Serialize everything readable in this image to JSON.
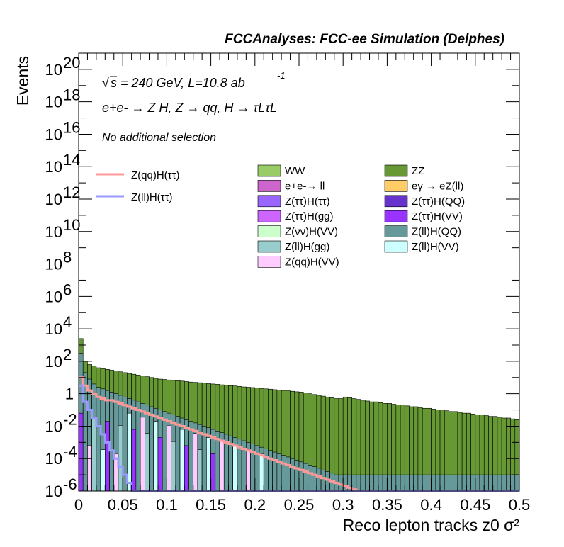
{
  "chart_data": {
    "type": "bar",
    "title": "FCCAnalyses: FCC-ee Simulation (Delphes)",
    "xlabel": "Reco lepton tracks z0 σ²",
    "ylabel": "Events",
    "x_range": [
      0,
      0.5
    ],
    "y_range": [
      1e-06,
      1e+21
    ],
    "y_scale": "log",
    "x_ticks": [
      "0",
      "0.05",
      "0.1",
      "0.15",
      "0.2",
      "0.25",
      "0.3",
      "0.35",
      "0.4",
      "0.45",
      "0.5"
    ],
    "y_tick_exponents": [
      "-6",
      "-4",
      "-2",
      "",
      "2",
      "4",
      "6",
      "8",
      "10",
      "12",
      "14",
      "16",
      "18",
      "20"
    ],
    "annotations": {
      "energy": "s = 240 GeV, L=10.8 ab",
      "energy_sup": "-1",
      "process": "e+e- → Z H, Z → qq, H → τLτL",
      "selection": "No additional selection"
    },
    "legend": {
      "lines": [
        {
          "label": "Z(qq)H(ττ)",
          "color": "#ff9999"
        },
        {
          "label": "Z(ll)H(ττ)",
          "color": "#9999ff"
        }
      ],
      "fills": [
        {
          "label": "WW",
          "color": "#99cc66"
        },
        {
          "label": "ZZ",
          "color": "#669933"
        },
        {
          "label": "e+e-→ ll",
          "color": "#cc66cc"
        },
        {
          "label": "eγ → eZ(ll)",
          "color": "#ffcc66"
        },
        {
          "label": "Z(ττ)H(ττ)",
          "color": "#9966ff"
        },
        {
          "label": "Z(ττ)H(QQ)",
          "color": "#6633cc"
        },
        {
          "label": "Z(ττ)H(gg)",
          "color": "#cc66ff"
        },
        {
          "label": "Z(ττ)H(VV)",
          "color": "#9933ff"
        },
        {
          "label": "Z(νν)H(VV)",
          "color": "#ccffcc"
        },
        {
          "label": "Z(ll)H(QQ)",
          "color": "#669999"
        },
        {
          "label": "Z(ll)H(gg)",
          "color": "#99cccc"
        },
        {
          "label": "Z(ll)H(VV)",
          "color": "#ccffff"
        },
        {
          "label": "Z(qq)H(VV)",
          "color": "#ffccff"
        }
      ]
    },
    "bin_width": 0.005,
    "stack_total_log10": [
      3.4,
      2.0,
      1.8,
      1.7,
      1.6,
      1.55,
      1.5,
      1.45,
      1.4,
      1.35,
      1.3,
      1.25,
      1.2,
      1.15,
      1.1,
      1.05,
      1.0,
      0.95,
      0.9,
      0.88,
      0.85,
      0.82,
      0.8,
      0.78,
      0.75,
      0.72,
      0.7,
      0.68,
      0.65,
      0.62,
      0.6,
      0.58,
      0.55,
      0.52,
      0.5,
      0.48,
      0.45,
      0.42,
      0.4,
      0.38,
      0.35,
      0.33,
      0.3,
      0.28,
      0.25,
      0.22,
      0.2,
      0.18,
      0.15,
      0.12,
      0.1,
      0.05,
      0.0,
      -0.05,
      -0.1,
      -0.15,
      -0.2,
      -0.25,
      -0.3,
      -0.3,
      -0.2,
      -0.25,
      -0.3,
      -0.35,
      -0.4,
      -0.45,
      -0.5,
      -0.5,
      -0.55,
      -0.6,
      -0.6,
      -0.65,
      -0.7,
      -0.7,
      -0.75,
      -0.8,
      -0.8,
      -0.85,
      -0.9,
      -0.9,
      -0.95,
      -1.0,
      -1.0,
      -1.05,
      -1.1,
      -1.1,
      -1.15,
      -1.2,
      -1.2,
      -1.25,
      -1.3,
      -1.3,
      -1.35,
      -1.4,
      -1.4,
      -1.45,
      -1.5,
      -1.5,
      -1.55,
      -1.6
    ],
    "zllhqq_log10": [
      2.5,
      1.3,
      0.9,
      0.6,
      0.4,
      0.3,
      0.2,
      0.1,
      0.0,
      -0.1,
      -0.2,
      -0.3,
      -0.4,
      -0.5,
      -0.6,
      -0.7,
      -0.8,
      -0.9,
      -1.0,
      -1.1,
      -1.2,
      -1.3,
      -1.4,
      -1.5,
      -1.6,
      -1.7,
      -1.8,
      -1.9,
      -2.0,
      -2.1,
      -2.2,
      -2.3,
      -2.4,
      -2.5,
      -2.6,
      -2.7,
      -2.8,
      -2.9,
      -3.0,
      -3.1,
      -3.2,
      -3.3,
      -3.4,
      -3.5,
      -3.6,
      -3.7,
      -3.8,
      -3.9,
      -4.0,
      -4.1,
      -4.2,
      -4.3,
      -4.4,
      -4.5,
      -4.6,
      -4.7,
      -4.8,
      -4.9,
      -5.0,
      -5.0,
      -5.0,
      -5.0,
      -5.0,
      -5.0,
      -5.0,
      -5.0,
      -5.0,
      -5.0,
      -5.0,
      -5.0,
      -5.0,
      -5.0,
      -5.0,
      -5.0,
      -5.0,
      -5.0,
      -5.0,
      -5.0,
      -5.0,
      -5.0,
      -5.0,
      -5.0,
      -5.0,
      -5.0,
      -5.0,
      -5.0,
      -5.0,
      -5.0,
      -5.0,
      -5.0,
      -5.0,
      -5.0,
      -5.0,
      -5.0,
      -5.0,
      -5.0,
      -5.0,
      -5.0,
      -5.0,
      -5.0
    ],
    "zqqhtautau_log10": [
      1.0,
      0.5,
      0.2,
      0.0,
      -0.2,
      -0.3,
      -0.4,
      -0.4,
      -0.5,
      -0.6,
      -0.7,
      -0.8,
      -0.9,
      -1.0,
      -1.1,
      -1.2,
      -1.3,
      -1.4,
      -1.5,
      -1.6,
      -1.7,
      -1.8,
      -1.9,
      -2.0,
      -2.1,
      -2.2,
      -2.3,
      -2.4,
      -2.5,
      -2.6,
      -2.7,
      -2.8,
      -2.9,
      -3.0,
      -3.1,
      -3.2,
      -3.3,
      -3.4,
      -3.5,
      -3.6,
      -3.7,
      -3.8,
      -3.9,
      -4.0,
      -4.1,
      -4.2,
      -4.3,
      -4.4,
      -4.5,
      -4.6,
      -4.7,
      -4.8,
      -4.9,
      -5.0,
      -5.1,
      -5.2,
      -5.3,
      -5.4,
      -5.5,
      -5.6,
      -5.7,
      -5.8,
      -5.9,
      -6.0,
      -6.0,
      -6.0,
      -6.0,
      -6.0,
      -6.0,
      -6.0,
      -6.0,
      -6.0,
      -6.0,
      -6.0,
      -6.0,
      -6.0,
      -6.0,
      -6.0,
      -6.0,
      -6.0,
      -6.0,
      -6.0,
      -6.0,
      -6.0,
      -6.0,
      -6.0,
      -6.0,
      -6.0,
      -6.0,
      -6.0,
      -6.0,
      -6.0,
      -6.0,
      -6.0,
      -6.0,
      -6.0,
      -6.0,
      -6.0,
      -6.0,
      -6.0
    ],
    "zllhtautau_log10": [
      0.5,
      -0.5,
      -1.0,
      -1.5,
      -2.0,
      -2.5,
      -3.0,
      -3.5,
      -4.0,
      -4.5,
      -5.0,
      -5.5,
      -6.0,
      -6.0,
      -6.0,
      -6.0,
      -6.0,
      -6.0,
      -6.0,
      -6.0,
      -6.0,
      -6.0,
      -6.0,
      -6.0,
      -6.0,
      -6.0,
      -6.0,
      -6.0,
      -6.0,
      -6.0,
      -6.0,
      -6.0,
      -6.0,
      -6.0,
      -6.0,
      -6.0,
      -6.0,
      -6.0,
      -6.0,
      -6.0,
      -6.0,
      -6.0,
      -6.0,
      -6.0,
      -6.0,
      -6.0,
      -6.0,
      -6.0,
      -6.0,
      -6.0,
      -6.0,
      -6.0,
      -6.0,
      -6.0,
      -6.0,
      -6.0,
      -6.0,
      -6.0,
      -6.0,
      -6.0,
      -6.0,
      -6.0,
      -6.0,
      -6.0,
      -6.0,
      -6.0,
      -6.0,
      -6.0,
      -6.0,
      -6.0,
      -6.0,
      -6.0,
      -6.0,
      -6.0,
      -6.0,
      -6.0,
      -6.0,
      -6.0,
      -6.0,
      -6.0,
      -6.0,
      -6.0,
      -6.0,
      -6.0,
      -6.0,
      -6.0,
      -6.0,
      -6.0,
      -6.0,
      -6.0,
      -6.0,
      -6.0,
      -6.0,
      -6.0,
      -6.0,
      -6.0,
      -6.0,
      -6.0,
      -6.0,
      -6.0
    ]
  }
}
